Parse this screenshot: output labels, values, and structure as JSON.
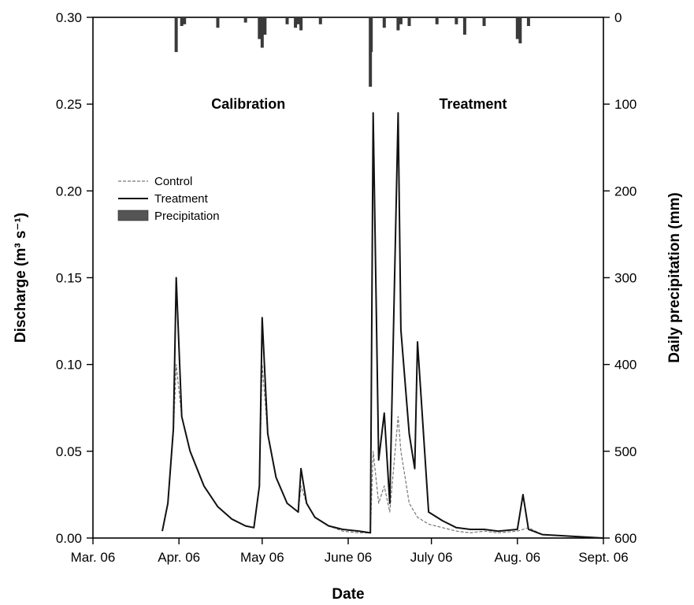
{
  "chart_data": {
    "type": "line",
    "title": "",
    "xlabel": "Date",
    "ylabel": "Discharge (m³ s⁻¹)",
    "y2label": "Daily precipitation (mm)",
    "x_ticks": [
      "Mar. 06",
      "Apr. 06",
      "May 06",
      "June 06",
      "July 06",
      "Aug. 06",
      "Sept. 06"
    ],
    "x_range": [
      "2006-03-01",
      "2006-09-01"
    ],
    "ylim": [
      0,
      0.3
    ],
    "y_ticks": [
      "0.00",
      "0.05",
      "0.10",
      "0.15",
      "0.20",
      "0.25",
      "0.30"
    ],
    "y2lim": [
      600,
      0
    ],
    "y2_reversed": true,
    "y2_ticks": [
      "600",
      "500",
      "400",
      "300",
      "200",
      "100",
      "0"
    ],
    "annotations": [
      {
        "text": "Calibration",
        "date": "2006-04-26",
        "y": 0.25
      },
      {
        "text": "Treatment",
        "date": "2006-07-16",
        "y": 0.25
      }
    ],
    "calibration_end": "2006-06-09",
    "legend": {
      "position": "upper-left",
      "entries": [
        {
          "label": "Control",
          "style": "dashed-thin",
          "color": "#555555"
        },
        {
          "label": "Treatment",
          "style": "solid",
          "color": "#111111"
        },
        {
          "label": "Precipitation",
          "style": "bar",
          "color": "#444444"
        }
      ]
    },
    "series": [
      {
        "name": "Control",
        "x": [
          "2006-03-26",
          "2006-03-28",
          "2006-03-30",
          "2006-03-31",
          "2006-04-02",
          "2006-04-05",
          "2006-04-10",
          "2006-04-15",
          "2006-04-20",
          "2006-04-25",
          "2006-04-28",
          "2006-04-30",
          "2006-05-01",
          "2006-05-03",
          "2006-05-06",
          "2006-05-10",
          "2006-05-14",
          "2006-05-15",
          "2006-05-17",
          "2006-05-20",
          "2006-05-25",
          "2006-05-30",
          "2006-06-05",
          "2006-06-09",
          "2006-06-10",
          "2006-06-12",
          "2006-06-14",
          "2006-06-16",
          "2006-06-19",
          "2006-06-20",
          "2006-06-23",
          "2006-06-26",
          "2006-06-30",
          "2006-07-05",
          "2006-07-10",
          "2006-07-15",
          "2006-07-20",
          "2006-07-25",
          "2006-08-01",
          "2006-08-05",
          "2006-08-10",
          "2006-09-01"
        ],
        "y": [
          0.004,
          0.02,
          0.06,
          0.1,
          0.07,
          0.05,
          0.03,
          0.018,
          0.011,
          0.007,
          0.006,
          0.03,
          0.1,
          0.06,
          0.035,
          0.02,
          0.015,
          0.03,
          0.02,
          0.012,
          0.007,
          0.004,
          0.003,
          0.003,
          0.05,
          0.02,
          0.03,
          0.015,
          0.07,
          0.05,
          0.02,
          0.012,
          0.008,
          0.006,
          0.004,
          0.003,
          0.004,
          0.003,
          0.004,
          0.006,
          0.002,
          0.0
        ]
      },
      {
        "name": "Treatment",
        "x": [
          "2006-03-26",
          "2006-03-28",
          "2006-03-30",
          "2006-03-31",
          "2006-04-02",
          "2006-04-05",
          "2006-04-10",
          "2006-04-15",
          "2006-04-20",
          "2006-04-25",
          "2006-04-28",
          "2006-04-30",
          "2006-05-01",
          "2006-05-03",
          "2006-05-06",
          "2006-05-10",
          "2006-05-14",
          "2006-05-15",
          "2006-05-17",
          "2006-05-20",
          "2006-05-25",
          "2006-05-30",
          "2006-06-05",
          "2006-06-09",
          "2006-06-10",
          "2006-06-12",
          "2006-06-14",
          "2006-06-16",
          "2006-06-19",
          "2006-06-20",
          "2006-06-23",
          "2006-06-25",
          "2006-06-26",
          "2006-06-30",
          "2006-07-05",
          "2006-07-10",
          "2006-07-15",
          "2006-07-20",
          "2006-07-25",
          "2006-08-01",
          "2006-08-03",
          "2006-08-05",
          "2006-08-10",
          "2006-09-01"
        ],
        "y": [
          0.004,
          0.02,
          0.063,
          0.15,
          0.07,
          0.05,
          0.03,
          0.018,
          0.011,
          0.007,
          0.006,
          0.03,
          0.127,
          0.06,
          0.035,
          0.02,
          0.015,
          0.04,
          0.02,
          0.012,
          0.007,
          0.005,
          0.004,
          0.003,
          0.245,
          0.045,
          0.072,
          0.02,
          0.245,
          0.12,
          0.06,
          0.04,
          0.113,
          0.015,
          0.01,
          0.006,
          0.005,
          0.005,
          0.004,
          0.005,
          0.025,
          0.005,
          0.002,
          0.0
        ]
      }
    ],
    "precipitation": {
      "name": "Precipitation",
      "unit": "mm",
      "x": [
        "2006-03-31",
        "2006-04-02",
        "2006-04-03",
        "2006-04-15",
        "2006-04-25",
        "2006-04-30",
        "2006-05-01",
        "2006-05-02",
        "2006-05-10",
        "2006-05-13",
        "2006-05-14",
        "2006-05-15",
        "2006-05-22",
        "2006-06-09",
        "2006-06-10",
        "2006-06-14",
        "2006-06-19",
        "2006-06-20",
        "2006-06-23",
        "2006-07-03",
        "2006-07-10",
        "2006-07-13",
        "2006-07-20",
        "2006-08-01",
        "2006-08-02",
        "2006-08-05"
      ],
      "y": [
        40,
        10,
        8,
        12,
        6,
        25,
        35,
        20,
        8,
        12,
        8,
        15,
        8,
        80,
        40,
        12,
        15,
        8,
        10,
        8,
        8,
        20,
        10,
        25,
        30,
        10
      ]
    }
  }
}
